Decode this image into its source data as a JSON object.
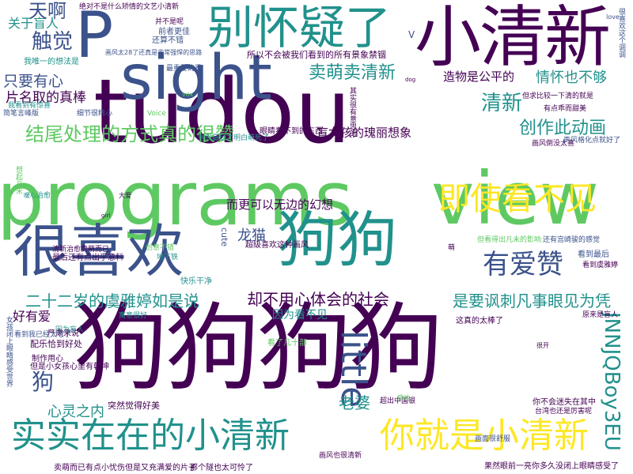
{
  "palette": {
    "dark_purple": "#440154",
    "indigo": "#3b528b",
    "teal": "#21918c",
    "green": "#5ec962",
    "yellow": "#fde725"
  },
  "words": {
    "w01": "狗狗狗狗",
    "w02": "programs",
    "w03": "tudou",
    "w04": "view",
    "w05": "sight",
    "w06": "P",
    "w07": "小清新",
    "w08": "别怀疑了",
    "w09": "很喜欢",
    "w10": "狗狗",
    "w11": "即使看不见",
    "w12": "实实在在的小清新",
    "w13": "你就是小清新",
    "w14": "little",
    "w15": "JNNJQBoy3EU",
    "w16": "结尾处理的方式真的很赞",
    "w17": "有爱赞",
    "w18": "二十二岁的虞雅婷如是说",
    "w19": "却不用心体会的社会",
    "w20": "是要讽刺凡事眼见为凭",
    "w21": "卖萌卖清新",
    "w22": "创作此动画",
    "w23": "清新",
    "w24": "情怀也不够",
    "w25": "天啊",
    "w26": "触觉",
    "w27": "只要有心",
    "w28": "片名取的真棒",
    "w29": "关于盲人",
    "w30": "龙猫",
    "w31": "好有爱",
    "w32": "老婆",
    "w33": "心灵之内",
    "w34": "狗",
    "w35": "而更可以无边的幻想",
    "w36": "盲女孩的瑰丽想象",
    "w37": "造物是公平的",
    "w38": "因为看不见",
    "w39": "绝对不是什么矫情的文艺小清新",
    "w40": "所以不会被我们看到的所有景象禁锢",
    "w41": "画风太28了还真是非常强悍的思路",
    "w42": "前者更佳",
    "w43": "还算不错",
    "w44": "我唯一的想法是",
    "w45": "眼睛看不到的东西",
    "w46": "看到最后才明白萌死了",
    "w47": "超级喜欢这种画风",
    "w48": "最后还有点出乎意料",
    "w49": "清新治愈卖萌而已",
    "w50": "画风倒没太喜",
    "w51": "再风格化点就好了",
    "w52": "但看得出凡未的影响",
    "w53": "还有宫崎骏的感觉",
    "w54": "看到最后",
    "w55": "看到虞雅婷",
    "w56": "这真的太棒了",
    "w57": "原来是盲人",
    "w58": "看了几十部",
    "w59": "突然觉得好美",
    "w60": "超出中国银",
    "w61": "你不会迷失在其中",
    "w62": "台湾也还是厉害呢",
    "w63": "画风也很清新",
    "w64": "果然眼前一亮你多久没闭上眼睛感受了",
    "w65": "那个隧也太可怜了",
    "w66": "卖萌而已有点小忧伤但是又充满爱的片子",
    "w67": "因为盲人",
    "w68": "严肃来说",
    "w69": "看到我已经太老了",
    "w70": "配乐恰到好处",
    "w71": "但是小女孩心里有乾坤",
    "w72": "制作用心",
    "w73": "快乐干净",
    "w74": "地下铁",
    "w75": "治愈",
    "w76": "萌",
    "w77": "大爱",
    "w78": "暖心",
    "w79": "很开",
    "w80": "感动",
    "w81": "画面很舒服",
    "w82": "并不是呢",
    "w83": "最重要的是",
    "w84": "细节很精心",
    "w85": "简笔言峰版",
    "w86": "我看到有惊喜",
    "w87": "但求比较一下清的就是",
    "w88": "有点乖而甜美",
    "w89": "女孩闭上眼睛感受世界",
    "w90": "想起几米",
    "w91": "很喜欢这个调调",
    "w92": "创意不错",
    "w93": "寓意很好",
    "w94": "其实很有意思的",
    "w95": "vox",
    "w96": "Voice",
    "w97": "dog",
    "w98": "girl",
    "w99": "cute",
    "w100": "love",
    "w101": "V"
  }
}
